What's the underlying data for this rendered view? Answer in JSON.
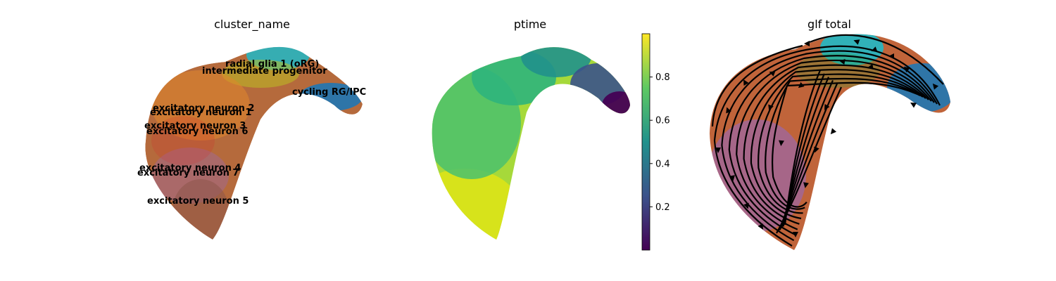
{
  "chart_data": [
    {
      "type": "scatter",
      "title": "cluster_name",
      "legend": "on data",
      "cluster_labels": [
        "radial glia 1 (oRG)",
        "intermediate progenitor",
        "cycling RG/IPC",
        "excitatory neuron 2",
        "excitatory neuron 1",
        "excitatory neuron 3",
        "excitatory neuron 6",
        "excitatory neuron 4",
        "excitatory neuron 7",
        "excitatory neuron 5"
      ],
      "cluster_colors": [
        "#17becf",
        "#bcbd22",
        "#1f77b4",
        "#ff7f0e",
        "#d62728",
        "#8c564b",
        "#e377c2",
        "#9467bd",
        "#7f7f7f",
        "#8c564b"
      ]
    },
    {
      "type": "scatter",
      "title": "ptime",
      "colorbar": {
        "colormap": "viridis",
        "range": [
          0,
          1
        ],
        "ticks": [
          0.2,
          0.4,
          0.6,
          0.8
        ],
        "tick_labels": [
          "0.2",
          "0.4",
          "0.6",
          "0.8"
        ]
      }
    },
    {
      "type": "scatter",
      "title": "glf total",
      "overlay": "velocity streamlines",
      "colors": [
        "#17becf",
        "#1f77b4",
        "#c86432",
        "#9467bd"
      ]
    }
  ]
}
